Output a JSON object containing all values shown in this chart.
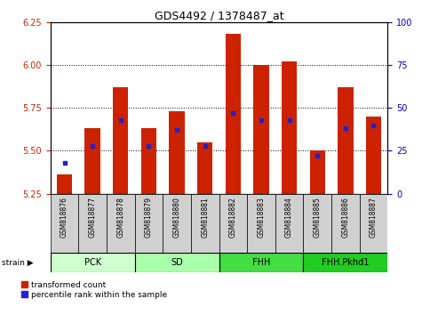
{
  "title": "GDS4492 / 1378487_at",
  "samples": [
    "GSM818876",
    "GSM818877",
    "GSM818878",
    "GSM818879",
    "GSM818880",
    "GSM818881",
    "GSM818882",
    "GSM818883",
    "GSM818884",
    "GSM818885",
    "GSM818886",
    "GSM818887"
  ],
  "bar_values": [
    5.36,
    5.63,
    5.87,
    5.63,
    5.73,
    5.55,
    6.18,
    6.0,
    6.02,
    5.5,
    5.87,
    5.7
  ],
  "bar_color": "#cc2200",
  "blue_dot_color": "#2222cc",
  "ymin": 5.25,
  "ymax": 6.25,
  "yticks": [
    5.25,
    5.5,
    5.75,
    6.0,
    6.25
  ],
  "right_yticks": [
    0,
    25,
    50,
    75,
    100
  ],
  "groups": [
    {
      "label": "PCK",
      "start": 0,
      "end": 3,
      "color": "#ccffcc"
    },
    {
      "label": "SD",
      "start": 3,
      "end": 6,
      "color": "#aaffaa"
    },
    {
      "label": "FHH",
      "start": 6,
      "end": 9,
      "color": "#44dd44"
    },
    {
      "label": "FHH.Pkhd1",
      "start": 9,
      "end": 12,
      "color": "#22cc22"
    }
  ],
  "strain_label": "strain",
  "legend_red": "transformed count",
  "legend_blue": "percentile rank within the sample",
  "left_tick_color": "#cc2200",
  "right_tick_color": "#0000cc",
  "bar_bottom": 5.25,
  "blue_dot_percentiles": [
    18,
    28,
    43,
    28,
    37,
    28,
    47,
    43,
    43,
    22,
    38,
    40
  ],
  "title_fontsize": 9,
  "tick_fontsize": 7,
  "label_fontsize": 5.5,
  "group_fontsize": 7,
  "legend_fontsize": 6.5
}
